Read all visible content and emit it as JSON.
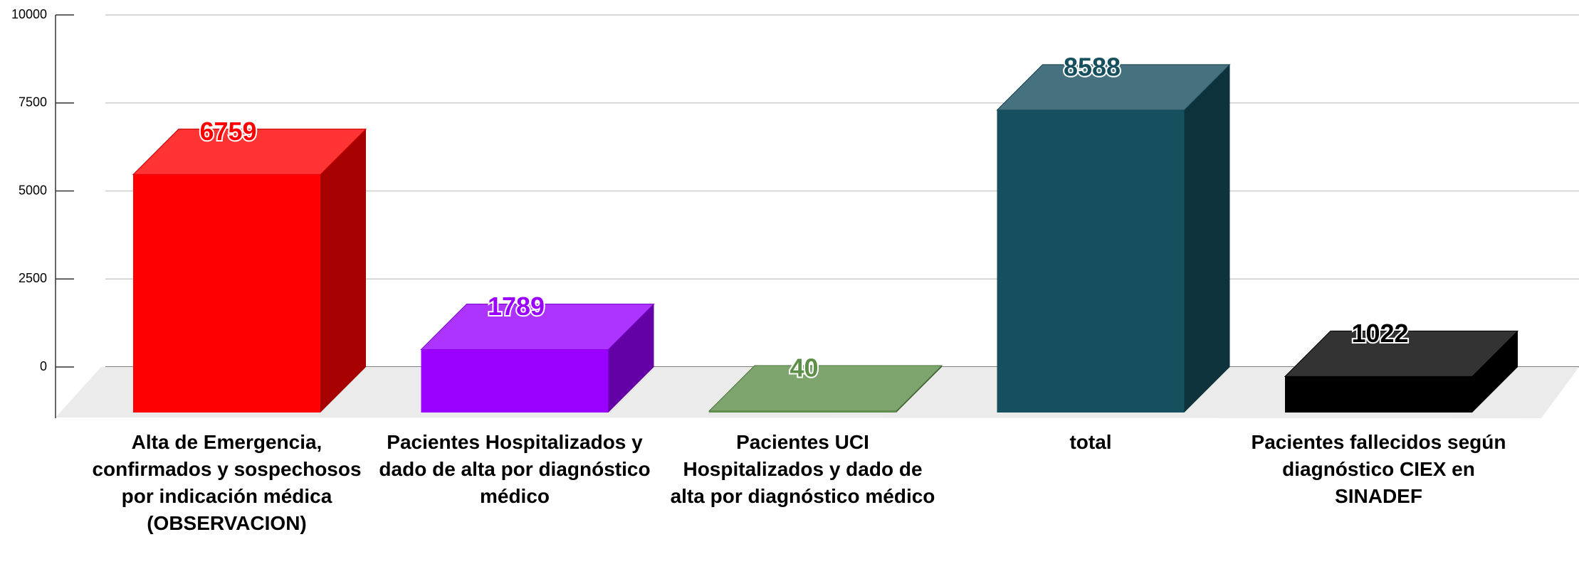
{
  "chart_data": {
    "type": "bar3d",
    "categories": [
      "Alta de Emergencia, confirmados y sospechosos  por indicación médica (OBSERVACION)",
      "Pacientes Hospitalizados y dado de alta por diagnóstico médico",
      "Pacientes UCI Hospitalizados y dado de alta por diagnóstico médico",
      "total",
      "Pacientes fallecidos según diagnóstico CIEX en SINADEF"
    ],
    "values": [
      6759,
      1789,
      40,
      8588,
      1022
    ],
    "colors": [
      "#ff0000",
      "#9900ff",
      "#5e8f48",
      "#164f5e",
      "#000000"
    ],
    "ylim": [
      0,
      10000
    ],
    "yticks": [
      0,
      2500,
      5000,
      7500,
      10000
    ],
    "grid": true
  }
}
